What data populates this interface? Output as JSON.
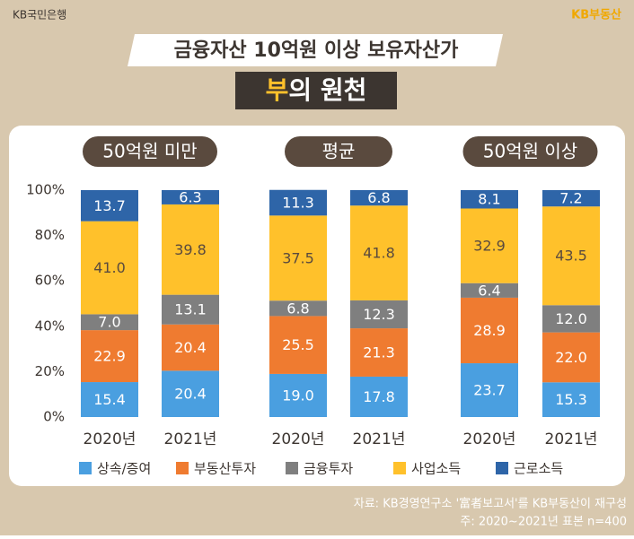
{
  "brand": "KB국민은행",
  "brand_right": "KB부동산",
  "chart_data": {
    "type": "stacked-bar",
    "title": "금융자산 10억원 이상 보유자산가",
    "subtitle": {
      "highlight": "부",
      "rest": "의 원천"
    },
    "group_labels": [
      "50억원 미만",
      "평균",
      "50억원 이상"
    ],
    "categories": [
      "2020년",
      "2021년",
      "2020년",
      "2021년",
      "2020년",
      "2021년"
    ],
    "ylim": [
      0,
      100
    ],
    "yticks": [
      {
        "value": 0,
        "label": "0%"
      },
      {
        "value": 20,
        "label": "20%"
      },
      {
        "value": 40,
        "label": "40%"
      },
      {
        "value": 60,
        "label": "60%"
      },
      {
        "value": 80,
        "label": "80%"
      },
      {
        "value": 100,
        "label": "100%"
      }
    ],
    "series": [
      {
        "name": "상속/증여",
        "color": "#4a9fe0",
        "values": [
          15.4,
          20.4,
          19.0,
          17.8,
          23.7,
          15.3
        ],
        "value_labels": [
          "15.4",
          "20.4",
          "19.0",
          "17.8",
          "23.7",
          "15.3"
        ]
      },
      {
        "name": "부동산투자",
        "color": "#ef7b30",
        "values": [
          22.9,
          20.4,
          25.5,
          21.3,
          28.9,
          22.0
        ],
        "value_labels": [
          "22.9",
          "20.4",
          "25.5",
          "21.3",
          "28.9",
          "22.0"
        ]
      },
      {
        "name": "금융투자",
        "color": "#7f7f7f",
        "values": [
          7.0,
          13.1,
          6.8,
          12.3,
          6.4,
          12.0
        ],
        "value_labels": [
          "7.0",
          "13.1",
          "6.8",
          "12.3",
          "6.4",
          "12.0"
        ]
      },
      {
        "name": "사업소득",
        "color": "#ffc12b",
        "values": [
          41.0,
          39.8,
          37.5,
          41.8,
          32.9,
          43.5
        ],
        "value_labels": [
          "41.0",
          "39.8",
          "37.5",
          "41.8",
          "32.9",
          "43.5"
        ]
      },
      {
        "name": "근로소득",
        "color": "#2e65a8",
        "values": [
          13.7,
          6.3,
          11.3,
          6.8,
          8.1,
          7.2
        ],
        "value_labels": [
          "13.7",
          "6.3",
          "11.3",
          "6.8",
          "8.1",
          "7.2"
        ]
      }
    ],
    "source": "자료: KB경영연구소 '富者보고서'를 KB부동산이 재구성",
    "note": "주: 2020~2021년 표본 n=400"
  }
}
